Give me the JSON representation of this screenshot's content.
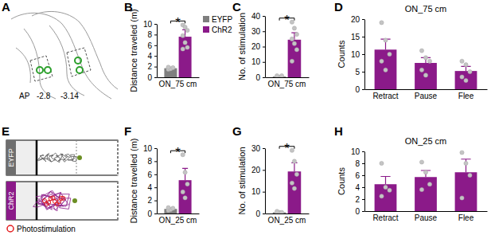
{
  "chart_data": [
    {
      "type": "bar",
      "panel_label": "B",
      "ylabel": "Distance traveled (m)",
      "categories": [
        "ON_75 cm"
      ],
      "series": [
        {
          "name": "EYFP",
          "color": "#7f7f7f",
          "values": [
            1.7
          ],
          "errors": [
            0.15
          ],
          "points": [
            [
              1.5,
              1.6,
              1.8,
              1.9
            ]
          ]
        },
        {
          "name": "ChR2",
          "color": "#8b1a89",
          "values": [
            7.6
          ],
          "errors": [
            1.3
          ],
          "points": [
            [
              9.8,
              9.4,
              8.8,
              7.8,
              6.5,
              5.6,
              5.3
            ]
          ]
        }
      ],
      "ylim": [
        0,
        10
      ],
      "yticks": [
        0,
        2,
        4,
        6,
        8,
        10
      ],
      "legend": "top-right",
      "annotations": [
        "*"
      ]
    },
    {
      "type": "bar",
      "panel_label": "C",
      "ylabel": "No. of stimulation",
      "categories": [
        "ON_75 cm"
      ],
      "series": [
        {
          "name": "EYFP",
          "color": "#7f7f7f",
          "values": [
            0.5
          ],
          "errors": [
            0.3
          ],
          "points": [
            [
              0,
              0,
              1,
              1
            ]
          ]
        },
        {
          "name": "ChR2",
          "color": "#8b1a89",
          "values": [
            24.5
          ],
          "errors": [
            4.5
          ],
          "points": [
            [
              36,
              32,
              28,
              25,
              22,
              18,
              10.5
            ]
          ]
        }
      ],
      "ylim": [
        0,
        40
      ],
      "yticks": [
        0,
        10,
        20,
        30,
        40
      ],
      "annotations": [
        "*"
      ]
    },
    {
      "type": "bar",
      "panel_label": "D",
      "title": "ON_75 cm",
      "ylabel": "Counts",
      "categories": [
        "Retract",
        "Pause",
        "Flee"
      ],
      "values": [
        11.3,
        7.5,
        5.2
      ],
      "errors": [
        3.0,
        1.5,
        1.3
      ],
      "points": [
        [
          19,
          14,
          10,
          8,
          5.5
        ],
        [
          11,
          9,
          8,
          5.5,
          4
        ],
        [
          8,
          7,
          5,
          3.5,
          2.5
        ]
      ],
      "color": "#8b1a89",
      "ylim": [
        0,
        20
      ],
      "yticks": [
        0,
        5,
        10,
        15,
        20
      ]
    },
    {
      "type": "bar",
      "panel_label": "F",
      "ylabel": "Distance travelled (m)",
      "categories": [
        "ON_25 cm"
      ],
      "series": [
        {
          "name": "EYFP",
          "color": "#7f7f7f",
          "values": [
            0.7
          ],
          "errors": [
            0.1
          ],
          "points": [
            [
              0.5,
              0.6,
              0.8,
              0.9
            ]
          ]
        },
        {
          "name": "ChR2",
          "color": "#8b1a89",
          "values": [
            5.1
          ],
          "errors": [
            1.8
          ],
          "points": [
            [
              9,
              6.3,
              4.5,
              3.3,
              2.4
            ]
          ]
        }
      ],
      "ylim": [
        0,
        10
      ],
      "yticks": [
        0,
        2,
        4,
        6,
        8,
        10
      ],
      "annotations": [
        "*"
      ]
    },
    {
      "type": "bar",
      "panel_label": "G",
      "ylabel": "No. of stimulation",
      "categories": [
        "ON_25 cm"
      ],
      "series": [
        {
          "name": "EYFP",
          "color": "#7f7f7f",
          "values": [
            0.5
          ],
          "errors": [
            0.2
          ],
          "points": [
            [
              0,
              0.5,
              0.5,
              1
            ]
          ]
        },
        {
          "name": "ChR2",
          "color": "#8b1a89",
          "values": [
            19.3
          ],
          "errors": [
            4.0
          ],
          "points": [
            [
              29,
              24,
              18,
              14,
              11.5
            ]
          ]
        }
      ],
      "ylim": [
        0,
        30
      ],
      "yticks": [
        0,
        10,
        20,
        30
      ],
      "annotations": [
        "*"
      ]
    },
    {
      "type": "bar",
      "panel_label": "H",
      "title": "ON_25 cm",
      "ylabel": "Counts",
      "categories": [
        "Retract",
        "Pause",
        "Flee"
      ],
      "values": [
        4.5,
        5.7,
        6.5
      ],
      "errors": [
        1.3,
        1.1,
        2.2
      ],
      "points": [
        [
          8,
          4,
          3.5,
          2.5
        ],
        [
          8.2,
          6.5,
          4.5,
          3.6
        ],
        [
          9.8,
          8,
          6,
          2.2
        ]
      ],
      "color": "#8b1a89",
      "ylim": [
        0,
        10
      ],
      "yticks": [
        0,
        2,
        4,
        6,
        8,
        10
      ]
    }
  ],
  "diagrams": {
    "A": {
      "panel_label": "A",
      "labels": [
        "AP",
        "-2.8",
        "-3.14"
      ]
    },
    "E": {
      "panel_label": "E",
      "groups": [
        "EYFP",
        "ChR2"
      ],
      "legend_label": "Photostimulation"
    }
  }
}
